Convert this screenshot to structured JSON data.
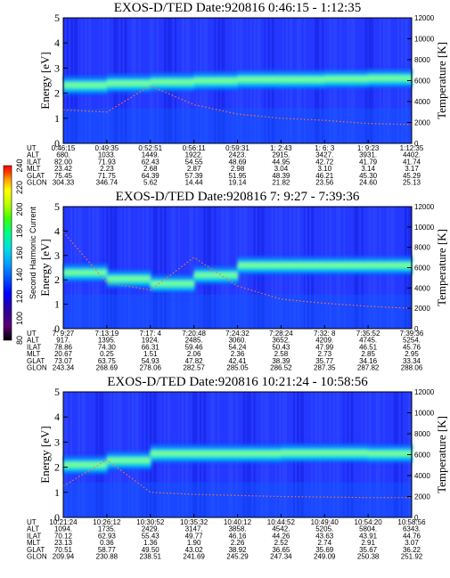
{
  "chart_data": [
    {
      "type": "heatmap",
      "title": "EXOS-D/TED  Date:920816  0:46:15 - 1:12:35",
      "ylabel": "Energy [eV]",
      "y2label": "Temperature [K]",
      "ylim": [
        0,
        5
      ],
      "y2lim": [
        0,
        12000
      ],
      "yticks": [
        "0",
        "1",
        "2",
        "3",
        "4",
        "5"
      ],
      "y2ticks": [
        "0",
        "2000",
        "4000",
        "6000",
        "8000",
        "10000",
        "12000"
      ],
      "band_center_eV": [
        2.3,
        2.35,
        2.45,
        2.45,
        2.55,
        2.55,
        2.55,
        2.6,
        2.6
      ],
      "temperature_K": [
        3200,
        3000,
        5500,
        3700,
        2800,
        2400,
        2200,
        1900,
        1800
      ],
      "rows": [
        {
          "label": "UT",
          "values": [
            "0:46:15",
            "0:49:35",
            "0:52:51",
            "0:56:11",
            "0:59:31",
            "1: 2:43",
            "1: 6: 3",
            "1: 9:23",
            "1:12:35"
          ]
        },
        {
          "label": "ALT",
          "values": [
            "680.",
            "1033.",
            "1449.",
            "1922.",
            "2423.",
            "2915.",
            "3427.",
            "3931.",
            "4402."
          ]
        },
        {
          "label": "ILAT",
          "values": [
            "82.00",
            "71.93",
            "62.43",
            "54.55",
            "48.69",
            "44.95",
            "42.72",
            "41.79",
            "41.74"
          ]
        },
        {
          "label": "MLT",
          "values": [
            "23.42",
            "2.23",
            "2.68",
            "2.87",
            "2.98",
            "3.04",
            "3.10",
            "3.14",
            "3.17"
          ]
        },
        {
          "label": "GLAT",
          "values": [
            "75.45",
            "71.75",
            "64.39",
            "57.39",
            "51.95",
            "48.39",
            "46.21",
            "45.30",
            "45.29"
          ]
        },
        {
          "label": "GLON",
          "values": [
            "304.33",
            "346.74",
            "5.62",
            "14.44",
            "19.14",
            "21.82",
            "23.56",
            "24.60",
            "25.13"
          ]
        }
      ]
    },
    {
      "type": "heatmap",
      "title": "EXOS-D/TED  Date:920816  7: 9:27 - 7:39:36",
      "ylabel": "Energy [eV]",
      "y2label": "Temperature [K]",
      "ylim": [
        0,
        5
      ],
      "y2lim": [
        0,
        12000
      ],
      "yticks": [
        "0",
        "1",
        "2",
        "3",
        "4",
        "5"
      ],
      "y2ticks": [
        "0",
        "2000",
        "4000",
        "6000",
        "8000",
        "10000",
        "12000"
      ],
      "band_center_eV": [
        2.4,
        2.2,
        1.9,
        1.8,
        2.6,
        2.6,
        2.6,
        2.6,
        2.6
      ],
      "temperature_K": [
        9500,
        4500,
        3800,
        7000,
        4200,
        2900,
        2500,
        2200,
        2000
      ],
      "rows": [
        {
          "label": "UT",
          "values": [
            "7: 9:27",
            "7:13:19",
            "7:17: 4",
            "7:20:48",
            "7:24:32",
            "7:28:24",
            "7:32: 8",
            "7:35:52",
            "7:39:36"
          ]
        },
        {
          "label": "ALT",
          "values": [
            "917.",
            "1395.",
            "1924.",
            "2485.",
            "3060.",
            "3652.",
            "4209.",
            "4745.",
            "5254."
          ]
        },
        {
          "label": "ILAT",
          "values": [
            "78.86",
            "74.30",
            "66.31",
            "59.46",
            "54.24",
            "50.43",
            "47.99",
            "46.51",
            "45.76"
          ]
        },
        {
          "label": "MLT",
          "values": [
            "20.67",
            "0.25",
            "1.51",
            "2.06",
            "2.36",
            "2.58",
            "2.73",
            "2.85",
            "2.95"
          ]
        },
        {
          "label": "GLAT",
          "values": [
            "73.07",
            "63.75",
            "54.93",
            "47.82",
            "42.41",
            "38.39",
            "35.77",
            "34.16",
            "33.34"
          ]
        },
        {
          "label": "GLON",
          "values": [
            "243.34",
            "268.69",
            "278.06",
            "282.57",
            "285.05",
            "286.52",
            "287.35",
            "287.82",
            "288.06"
          ]
        }
      ]
    },
    {
      "type": "heatmap",
      "title": "EXOS-D/TED  Date:920816  10:21:24 - 10:58:56",
      "ylabel": "Energy [eV]",
      "y2label": "Temperature [K]",
      "ylim": [
        0,
        5
      ],
      "y2lim": [
        0,
        12000
      ],
      "yticks": [
        "0",
        "1",
        "2",
        "3",
        "4",
        "5"
      ],
      "y2ticks": [
        "0",
        "2000",
        "4000",
        "6000",
        "8000",
        "10000",
        "12000"
      ],
      "band_center_eV": [
        2.2,
        2.0,
        2.55,
        2.55,
        2.55,
        2.55,
        2.6,
        2.55,
        2.55
      ],
      "temperature_K": [
        3000,
        5500,
        2400,
        2200,
        2100,
        2000,
        1950,
        1900,
        1900
      ],
      "rows": [
        {
          "label": "UT",
          "values": [
            "10:21:24",
            "10:26:12",
            "10:30:52",
            "10:35:32",
            "10:40:12",
            "10:44:52",
            "10:49:40",
            "10:54:20",
            "10:58:56"
          ]
        },
        {
          "label": "ALT",
          "values": [
            "1094.",
            "1735.",
            "2429.",
            "3147.",
            "3858.",
            "4542.",
            "5205.",
            "5804.",
            "6343."
          ]
        },
        {
          "label": "ILAT",
          "values": [
            "70.12",
            "62.93",
            "55.43",
            "49.77",
            "46.16",
            "44.26",
            "43.63",
            "43.91",
            "44.76"
          ]
        },
        {
          "label": "MLT",
          "values": [
            "23.13",
            "0.36",
            "1.36",
            "1.90",
            "2.26",
            "2.52",
            "2.74",
            "2.91",
            "3.07"
          ]
        },
        {
          "label": "GLAT",
          "values": [
            "70.51",
            "58.77",
            "49.50",
            "43.02",
            "38.92",
            "36.65",
            "35.69",
            "35.67",
            "36.22"
          ]
        },
        {
          "label": "GLON",
          "values": [
            "209.94",
            "230.88",
            "238.51",
            "241.69",
            "245.29",
            "247.34",
            "249.09",
            "250.38",
            "251.92"
          ]
        }
      ]
    }
  ],
  "colorbar": {
    "label": "Second Harmonic Current",
    "ticks": [
      "80",
      "100",
      "120",
      "140",
      "160",
      "180",
      "200",
      "220",
      "240"
    ],
    "colors": [
      "#000000",
      "#5a0070",
      "#2a00a0",
      "#0000ff",
      "#0050ff",
      "#00a0ff",
      "#00e0e0",
      "#00ff80",
      "#40ff00",
      "#c0ff00",
      "#ffff00",
      "#ffa000",
      "#ff4000",
      "#ff0000"
    ]
  }
}
